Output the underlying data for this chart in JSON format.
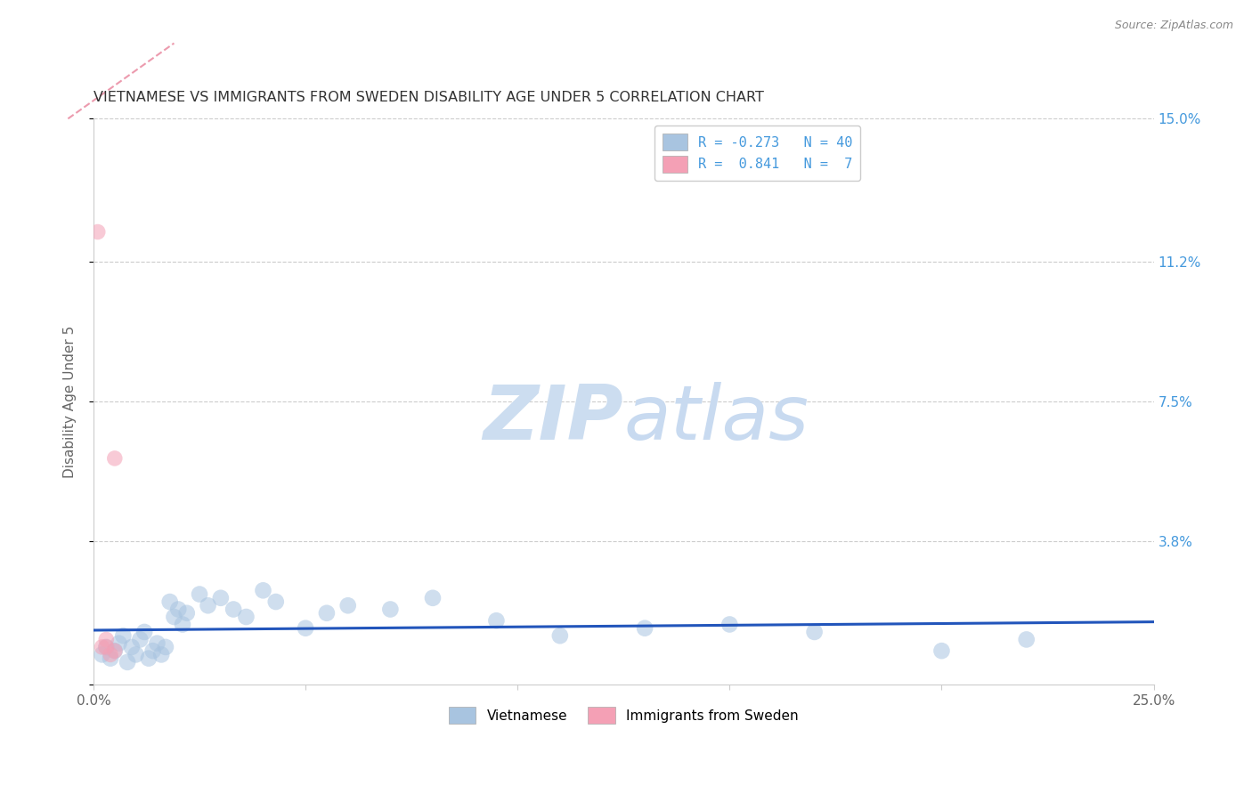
{
  "title": "VIETNAMESE VS IMMIGRANTS FROM SWEDEN DISABILITY AGE UNDER 5 CORRELATION CHART",
  "source": "Source: ZipAtlas.com",
  "ylabel": "Disability Age Under 5",
  "xlim": [
    0,
    0.25
  ],
  "ylim": [
    0,
    0.15
  ],
  "xticks": [
    0.0,
    0.05,
    0.1,
    0.15,
    0.2,
    0.25
  ],
  "xticklabels": [
    "0.0%",
    "",
    "",
    "",
    "",
    "25.0%"
  ],
  "yticks": [
    0.0,
    0.038,
    0.075,
    0.112,
    0.15
  ],
  "yticklabels": [
    "",
    "3.8%",
    "7.5%",
    "11.2%",
    "15.0%"
  ],
  "legend_r_blue": "-0.273",
  "legend_n_blue": "40",
  "legend_r_pink": "0.841",
  "legend_n_pink": "7",
  "legend_label_blue": "Vietnamese",
  "legend_label_pink": "Immigrants from Sweden",
  "blue_color": "#a8c4e0",
  "blue_line_color": "#2255bb",
  "pink_color": "#f4a0b5",
  "pink_line_color": "#e05878",
  "title_color": "#333333",
  "axis_label_color": "#666666",
  "right_tick_color": "#4499dd",
  "watermark_color": "#ccddf0",
  "grid_color": "#cccccc",
  "vietnamese_x": [
    0.002,
    0.003,
    0.004,
    0.005,
    0.006,
    0.007,
    0.008,
    0.009,
    0.01,
    0.011,
    0.012,
    0.013,
    0.014,
    0.015,
    0.016,
    0.017,
    0.018,
    0.019,
    0.02,
    0.021,
    0.022,
    0.025,
    0.027,
    0.03,
    0.033,
    0.036,
    0.04,
    0.043,
    0.05,
    0.055,
    0.06,
    0.07,
    0.08,
    0.095,
    0.11,
    0.13,
    0.15,
    0.17,
    0.2,
    0.22
  ],
  "vietnamese_y": [
    0.008,
    0.01,
    0.007,
    0.009,
    0.011,
    0.013,
    0.006,
    0.01,
    0.008,
    0.012,
    0.014,
    0.007,
    0.009,
    0.011,
    0.008,
    0.01,
    0.022,
    0.018,
    0.02,
    0.016,
    0.019,
    0.024,
    0.021,
    0.023,
    0.02,
    0.018,
    0.025,
    0.022,
    0.015,
    0.019,
    0.021,
    0.02,
    0.023,
    0.017,
    0.013,
    0.015,
    0.016,
    0.014,
    0.009,
    0.012
  ],
  "sweden_x": [
    0.001,
    0.002,
    0.003,
    0.003,
    0.004,
    0.005,
    0.005
  ],
  "sweden_y": [
    0.12,
    0.01,
    0.01,
    0.012,
    0.008,
    0.009,
    0.06
  ],
  "dot_size_blue": 180,
  "dot_size_pink": 160,
  "dot_alpha": 0.55
}
